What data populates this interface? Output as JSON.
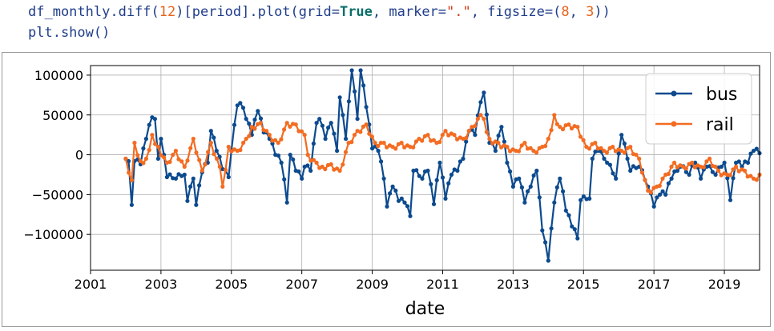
{
  "code": {
    "line1": {
      "p1": "df_monthly.diff(",
      "n1": "12",
      "p2": ")[period].plot(grid=",
      "kw": "True",
      "p3": ", marker=",
      "s1": "\".\"",
      "p4": ", figsize=(",
      "n2": "8",
      "p5": ", ",
      "n3": "3",
      "p6": "))"
    },
    "line2": "plt.show()"
  },
  "chart_data": {
    "type": "line",
    "xlabel": "date",
    "ylabel": "",
    "xlim": [
      2001,
      2020
    ],
    "ylim": [
      -145000,
      112000
    ],
    "xticks": [
      2001,
      2003,
      2005,
      2007,
      2009,
      2011,
      2013,
      2015,
      2017,
      2019
    ],
    "yticks": [
      -100000,
      -50000,
      0,
      50000,
      100000
    ],
    "ytick_labels": [
      "−100000",
      "−50000",
      "0",
      "50000",
      "100000"
    ],
    "grid": true,
    "legend_position": "top-right",
    "series": [
      {
        "name": "bus",
        "color": "#0c4a8e",
        "anchors": [
          [
            2002.0,
            -5000
          ],
          [
            2002.08,
            -8000
          ],
          [
            2002.17,
            -63000
          ],
          [
            2002.25,
            -8000
          ],
          [
            2002.42,
            -12000
          ],
          [
            2002.58,
            20000
          ],
          [
            2002.75,
            47000
          ],
          [
            2002.83,
            45000
          ],
          [
            2002.92,
            -5000
          ],
          [
            2003.0,
            20000
          ],
          [
            2003.17,
            -28000
          ],
          [
            2003.42,
            -30000
          ],
          [
            2003.67,
            -25000
          ],
          [
            2003.75,
            -58000
          ],
          [
            2003.92,
            -30000
          ],
          [
            2004.0,
            -63000
          ],
          [
            2004.17,
            -22000
          ],
          [
            2004.33,
            -10000
          ],
          [
            2004.42,
            30000
          ],
          [
            2004.58,
            5000
          ],
          [
            2004.75,
            -18000
          ],
          [
            2004.92,
            -28000
          ],
          [
            2005.0,
            5000
          ],
          [
            2005.17,
            62000
          ],
          [
            2005.25,
            65000
          ],
          [
            2005.42,
            45000
          ],
          [
            2005.58,
            25000
          ],
          [
            2005.75,
            55000
          ],
          [
            2005.92,
            28000
          ],
          [
            2006.08,
            20000
          ],
          [
            2006.25,
            0
          ],
          [
            2006.42,
            -10000
          ],
          [
            2006.58,
            -60000
          ],
          [
            2006.67,
            0
          ],
          [
            2006.83,
            -20000
          ],
          [
            2007.0,
            -30000
          ],
          [
            2007.08,
            -15000
          ],
          [
            2007.25,
            -20000
          ],
          [
            2007.42,
            40000
          ],
          [
            2007.5,
            45000
          ],
          [
            2007.67,
            20000
          ],
          [
            2007.83,
            40000
          ],
          [
            2008.0,
            5000
          ],
          [
            2008.08,
            72000
          ],
          [
            2008.25,
            20000
          ],
          [
            2008.42,
            106000
          ],
          [
            2008.58,
            45000
          ],
          [
            2008.67,
            106000
          ],
          [
            2008.83,
            60000
          ],
          [
            2009.0,
            8000
          ],
          [
            2009.17,
            5000
          ],
          [
            2009.33,
            -30000
          ],
          [
            2009.42,
            -65000
          ],
          [
            2009.58,
            -40000
          ],
          [
            2009.75,
            -58000
          ],
          [
            2009.92,
            -60000
          ],
          [
            2010.08,
            -77000
          ],
          [
            2010.17,
            -20000
          ],
          [
            2010.42,
            -30000
          ],
          [
            2010.58,
            -20000
          ],
          [
            2010.75,
            -62000
          ],
          [
            2010.92,
            -10000
          ],
          [
            2011.08,
            -55000
          ],
          [
            2011.25,
            -25000
          ],
          [
            2011.42,
            -20000
          ],
          [
            2011.58,
            -5000
          ],
          [
            2011.75,
            30000
          ],
          [
            2011.92,
            25000
          ],
          [
            2012.08,
            66000
          ],
          [
            2012.17,
            78000
          ],
          [
            2012.33,
            15000
          ],
          [
            2012.5,
            5000
          ],
          [
            2012.67,
            35000
          ],
          [
            2012.83,
            -10000
          ],
          [
            2013.0,
            -40000
          ],
          [
            2013.17,
            -30000
          ],
          [
            2013.33,
            -60000
          ],
          [
            2013.5,
            -40000
          ],
          [
            2013.67,
            -20000
          ],
          [
            2013.83,
            -95000
          ],
          [
            2014.0,
            -133000
          ],
          [
            2014.17,
            -60000
          ],
          [
            2014.33,
            -30000
          ],
          [
            2014.5,
            -70000
          ],
          [
            2014.67,
            -90000
          ],
          [
            2014.83,
            -105000
          ],
          [
            2014.92,
            -57000
          ],
          [
            2015.17,
            -55000
          ],
          [
            2015.25,
            -5000
          ],
          [
            2015.42,
            5000
          ],
          [
            2015.67,
            -10000
          ],
          [
            2015.92,
            -30000
          ],
          [
            2016.08,
            25000
          ],
          [
            2016.33,
            -20000
          ],
          [
            2016.58,
            -15000
          ],
          [
            2016.83,
            -40000
          ],
          [
            2017.0,
            -65000
          ],
          [
            2017.17,
            -50000
          ],
          [
            2017.33,
            -50000
          ],
          [
            2017.5,
            -30000
          ],
          [
            2017.75,
            -15000
          ],
          [
            2018.0,
            -25000
          ],
          [
            2018.17,
            -10000
          ],
          [
            2018.33,
            -30000
          ],
          [
            2018.5,
            -15000
          ],
          [
            2018.75,
            -25000
          ],
          [
            2019.0,
            -10000
          ],
          [
            2019.17,
            -57000
          ],
          [
            2019.33,
            -10000
          ],
          [
            2019.5,
            -15000
          ],
          [
            2019.67,
            -10000
          ],
          [
            2019.83,
            5000
          ],
          [
            2020.0,
            2000
          ]
        ]
      },
      {
        "name": "rail",
        "color": "#f36c21",
        "anchors": [
          [
            2002.0,
            -5000
          ],
          [
            2002.17,
            -32000
          ],
          [
            2002.25,
            15000
          ],
          [
            2002.42,
            -8000
          ],
          [
            2002.58,
            -5000
          ],
          [
            2002.75,
            25000
          ],
          [
            2002.92,
            10000
          ],
          [
            2003.17,
            -10000
          ],
          [
            2003.42,
            5000
          ],
          [
            2003.67,
            -15000
          ],
          [
            2003.92,
            20000
          ],
          [
            2004.17,
            -20000
          ],
          [
            2004.42,
            15000
          ],
          [
            2004.67,
            -15000
          ],
          [
            2004.75,
            -40000
          ],
          [
            2004.92,
            10000
          ],
          [
            2005.17,
            5000
          ],
          [
            2005.42,
            20000
          ],
          [
            2005.58,
            35000
          ],
          [
            2005.83,
            40000
          ],
          [
            2006.08,
            25000
          ],
          [
            2006.33,
            15000
          ],
          [
            2006.58,
            40000
          ],
          [
            2006.83,
            38000
          ],
          [
            2007.08,
            25000
          ],
          [
            2007.17,
            0
          ],
          [
            2007.42,
            -10000
          ],
          [
            2007.58,
            -15000
          ],
          [
            2007.83,
            -12000
          ],
          [
            2008.08,
            -20000
          ],
          [
            2008.33,
            15000
          ],
          [
            2008.58,
            30000
          ],
          [
            2008.83,
            38000
          ],
          [
            2009.08,
            15000
          ],
          [
            2009.33,
            15000
          ],
          [
            2009.58,
            10000
          ],
          [
            2009.83,
            15000
          ],
          [
            2010.08,
            10000
          ],
          [
            2010.33,
            20000
          ],
          [
            2010.58,
            25000
          ],
          [
            2010.83,
            15000
          ],
          [
            2011.08,
            30000
          ],
          [
            2011.33,
            25000
          ],
          [
            2011.58,
            20000
          ],
          [
            2011.83,
            35000
          ],
          [
            2012.08,
            50000
          ],
          [
            2012.17,
            45000
          ],
          [
            2012.33,
            20000
          ],
          [
            2012.58,
            15000
          ],
          [
            2012.83,
            10000
          ],
          [
            2013.08,
            5000
          ],
          [
            2013.33,
            15000
          ],
          [
            2013.58,
            5000
          ],
          [
            2013.83,
            10000
          ],
          [
            2014.0,
            20000
          ],
          [
            2014.17,
            50000
          ],
          [
            2014.33,
            35000
          ],
          [
            2014.58,
            38000
          ],
          [
            2014.83,
            35000
          ],
          [
            2015.08,
            10000
          ],
          [
            2015.33,
            15000
          ],
          [
            2015.58,
            5000
          ],
          [
            2015.83,
            10000
          ],
          [
            2016.08,
            5000
          ],
          [
            2016.33,
            10000
          ],
          [
            2016.58,
            -5000
          ],
          [
            2016.83,
            -45000
          ],
          [
            2017.08,
            -40000
          ],
          [
            2017.33,
            -25000
          ],
          [
            2017.58,
            -10000
          ],
          [
            2017.83,
            -15000
          ],
          [
            2018.08,
            -10000
          ],
          [
            2018.33,
            -15000
          ],
          [
            2018.58,
            -5000
          ],
          [
            2018.83,
            -20000
          ],
          [
            2019.08,
            -25000
          ],
          [
            2019.33,
            -15000
          ],
          [
            2019.58,
            -20000
          ],
          [
            2019.83,
            -30000
          ],
          [
            2020.0,
            -25000
          ]
        ]
      }
    ]
  }
}
